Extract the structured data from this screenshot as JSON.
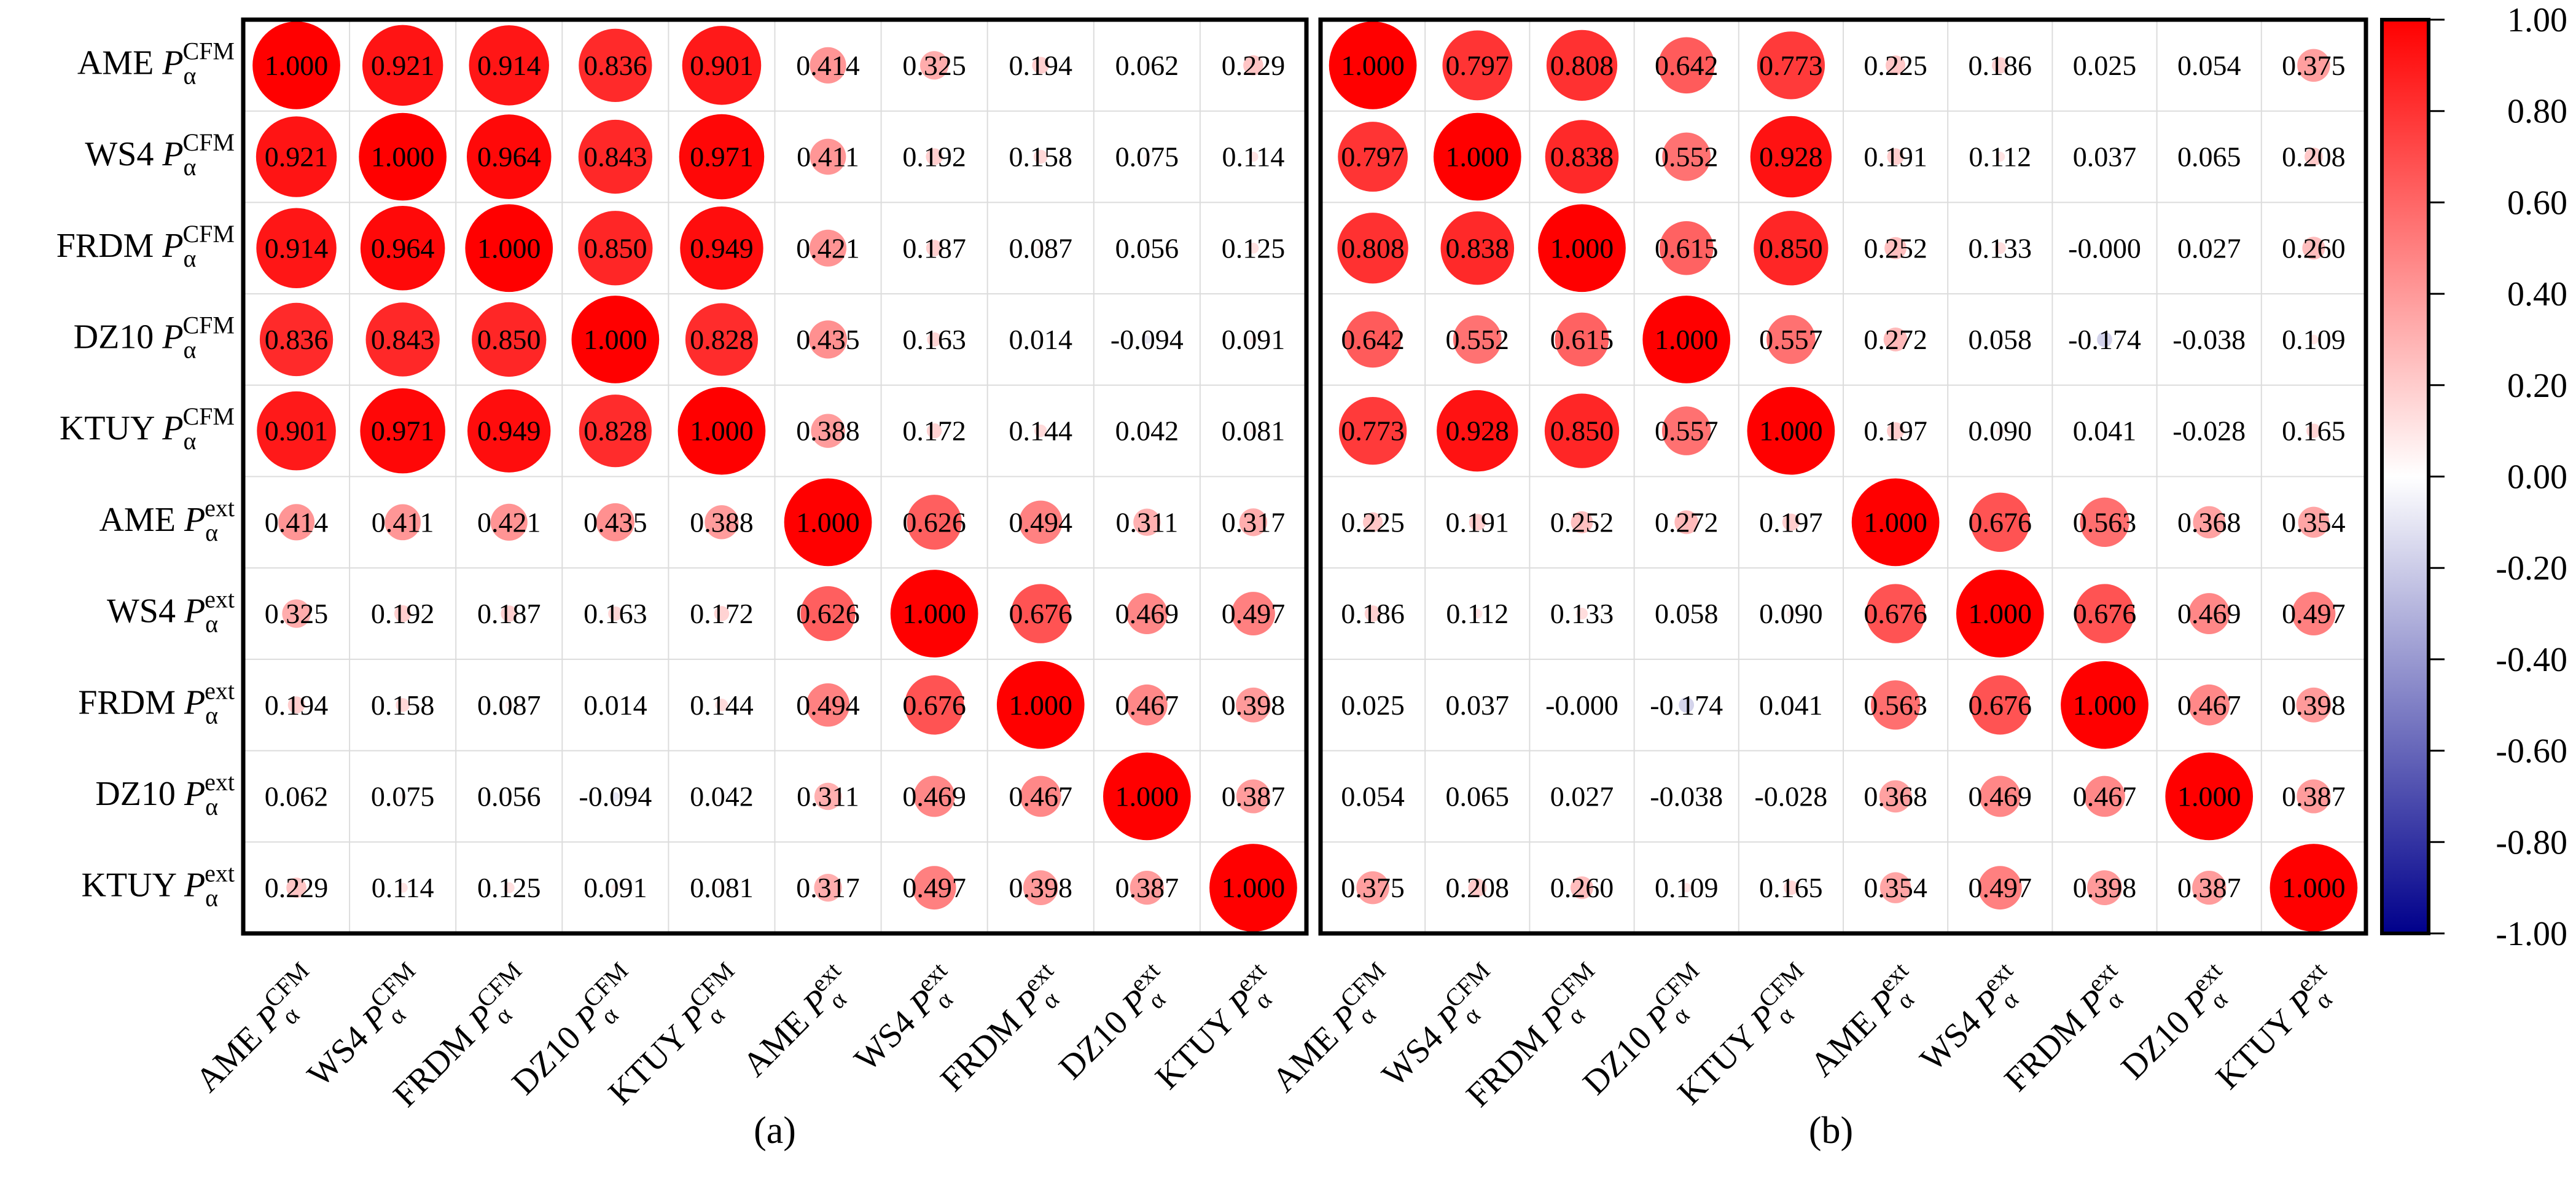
{
  "chart_data": [
    {
      "type": "heatmap",
      "caption": "(a)",
      "labels": [
        {
          "name": "AME",
          "sub": "α",
          "sup": "CFM"
        },
        {
          "name": "WS4",
          "sub": "α",
          "sup": "CFM"
        },
        {
          "name": "FRDM",
          "sub": "α",
          "sup": "CFM"
        },
        {
          "name": "DZ10",
          "sub": "α",
          "sup": "CFM"
        },
        {
          "name": "KTUY",
          "sub": "α",
          "sup": "CFM"
        },
        {
          "name": "AME",
          "sub": "α",
          "sup": "ext"
        },
        {
          "name": "WS4",
          "sub": "α",
          "sup": "ext"
        },
        {
          "name": "FRDM",
          "sub": "α",
          "sup": "ext"
        },
        {
          "name": "DZ10",
          "sub": "α",
          "sup": "ext"
        },
        {
          "name": "KTUY",
          "sub": "α",
          "sup": "ext"
        }
      ],
      "values": [
        [
          "1.000",
          "0.921",
          "0.914",
          "0.836",
          "0.901",
          "0.414",
          "0.325",
          "0.194",
          "0.062",
          "0.229"
        ],
        [
          "0.921",
          "1.000",
          "0.964",
          "0.843",
          "0.971",
          "0.411",
          "0.192",
          "0.158",
          "0.075",
          "0.114"
        ],
        [
          "0.914",
          "0.964",
          "1.000",
          "0.850",
          "0.949",
          "0.421",
          "0.187",
          "0.087",
          "0.056",
          "0.125"
        ],
        [
          "0.836",
          "0.843",
          "0.850",
          "1.000",
          "0.828",
          "0.435",
          "0.163",
          "0.014",
          "-0.094",
          "0.091"
        ],
        [
          "0.901",
          "0.971",
          "0.949",
          "0.828",
          "1.000",
          "0.388",
          "0.172",
          "0.144",
          "0.042",
          "0.081"
        ],
        [
          "0.414",
          "0.411",
          "0.421",
          "0.435",
          "0.388",
          "1.000",
          "0.626",
          "0.494",
          "0.311",
          "0.317"
        ],
        [
          "0.325",
          "0.192",
          "0.187",
          "0.163",
          "0.172",
          "0.626",
          "1.000",
          "0.676",
          "0.469",
          "0.497"
        ],
        [
          "0.194",
          "0.158",
          "0.087",
          "0.014",
          "0.144",
          "0.494",
          "0.676",
          "1.000",
          "0.467",
          "0.398"
        ],
        [
          "0.062",
          "0.075",
          "0.056",
          "-0.094",
          "0.042",
          "0.311",
          "0.469",
          "0.467",
          "1.000",
          "0.387"
        ],
        [
          "0.229",
          "0.114",
          "0.125",
          "0.091",
          "0.081",
          "0.317",
          "0.497",
          "0.398",
          "0.387",
          "1.000"
        ]
      ]
    },
    {
      "type": "heatmap",
      "caption": "(b)",
      "labels": [
        {
          "name": "AME",
          "sub": "α",
          "sup": "CFM"
        },
        {
          "name": "WS4",
          "sub": "α",
          "sup": "CFM"
        },
        {
          "name": "FRDM",
          "sub": "α",
          "sup": "CFM"
        },
        {
          "name": "DZ10",
          "sub": "α",
          "sup": "CFM"
        },
        {
          "name": "KTUY",
          "sub": "α",
          "sup": "CFM"
        },
        {
          "name": "AME",
          "sub": "α",
          "sup": "ext"
        },
        {
          "name": "WS4",
          "sub": "α",
          "sup": "ext"
        },
        {
          "name": "FRDM",
          "sub": "α",
          "sup": "ext"
        },
        {
          "name": "DZ10",
          "sub": "α",
          "sup": "ext"
        },
        {
          "name": "KTUY",
          "sub": "α",
          "sup": "ext"
        }
      ],
      "values": [
        [
          "1.000",
          "0.797",
          "0.808",
          "0.642",
          "0.773",
          "0.225",
          "0.186",
          "0.025",
          "0.054",
          "0.375"
        ],
        [
          "0.797",
          "1.000",
          "0.838",
          "0.552",
          "0.928",
          "0.191",
          "0.112",
          "0.037",
          "0.065",
          "0.208"
        ],
        [
          "0.808",
          "0.838",
          "1.000",
          "0.615",
          "0.850",
          "0.252",
          "0.133",
          "-0.000",
          "0.027",
          "0.260"
        ],
        [
          "0.642",
          "0.552",
          "0.615",
          "1.000",
          "0.557",
          "0.272",
          "0.058",
          "-0.174",
          "-0.038",
          "0.109"
        ],
        [
          "0.773",
          "0.928",
          "0.850",
          "0.557",
          "1.000",
          "0.197",
          "0.090",
          "0.041",
          "-0.028",
          "0.165"
        ],
        [
          "0.225",
          "0.191",
          "0.252",
          "0.272",
          "0.197",
          "1.000",
          "0.676",
          "0.563",
          "0.368",
          "0.354"
        ],
        [
          "0.186",
          "0.112",
          "0.133",
          "0.058",
          "0.090",
          "0.676",
          "1.000",
          "0.676",
          "0.469",
          "0.497"
        ],
        [
          "0.025",
          "0.037",
          "-0.000",
          "-0.174",
          "0.041",
          "0.563",
          "0.676",
          "1.000",
          "0.467",
          "0.398"
        ],
        [
          "0.054",
          "0.065",
          "0.027",
          "-0.038",
          "-0.028",
          "0.368",
          "0.469",
          "0.467",
          "1.000",
          "0.387"
        ],
        [
          "0.375",
          "0.208",
          "0.260",
          "0.109",
          "0.165",
          "0.354",
          "0.497",
          "0.398",
          "0.387",
          "1.000"
        ]
      ]
    }
  ],
  "colorbar": {
    "range": [
      -1,
      1
    ],
    "ticks": [
      "1.00",
      "0.80",
      "0.60",
      "0.40",
      "0.20",
      "0.00",
      "-0.20",
      "-0.40",
      "-0.60",
      "-0.80",
      "-1.00"
    ],
    "colors": {
      "positive": "#ff0000",
      "zero": "#ffffff",
      "negative": "#00008b"
    }
  }
}
